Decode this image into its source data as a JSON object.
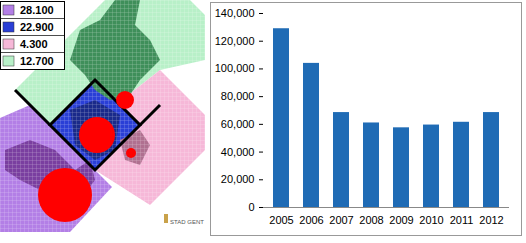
{
  "chart_data": {
    "type": "bar",
    "categories": [
      "2005",
      "2006",
      "2007",
      "2008",
      "2009",
      "2010",
      "2011",
      "2012"
    ],
    "values": [
      129000,
      104000,
      68500,
      61000,
      57500,
      59500,
      61500,
      68500
    ],
    "color": "#1f6bb5",
    "ylim": [
      0,
      140000
    ],
    "yticks": [
      0,
      20000,
      40000,
      60000,
      80000,
      100000,
      120000,
      140000
    ],
    "grid": false
  },
  "map": {
    "legend": [
      {
        "label": "28.100",
        "color": "#b37fe6"
      },
      {
        "label": "22.900",
        "color": "#2a3fd6"
      },
      {
        "label": "4.300",
        "color": "#f6b8d8"
      },
      {
        "label": "12.700",
        "color": "#b8f0c8"
      }
    ],
    "logo_text": "STAD GENT"
  }
}
